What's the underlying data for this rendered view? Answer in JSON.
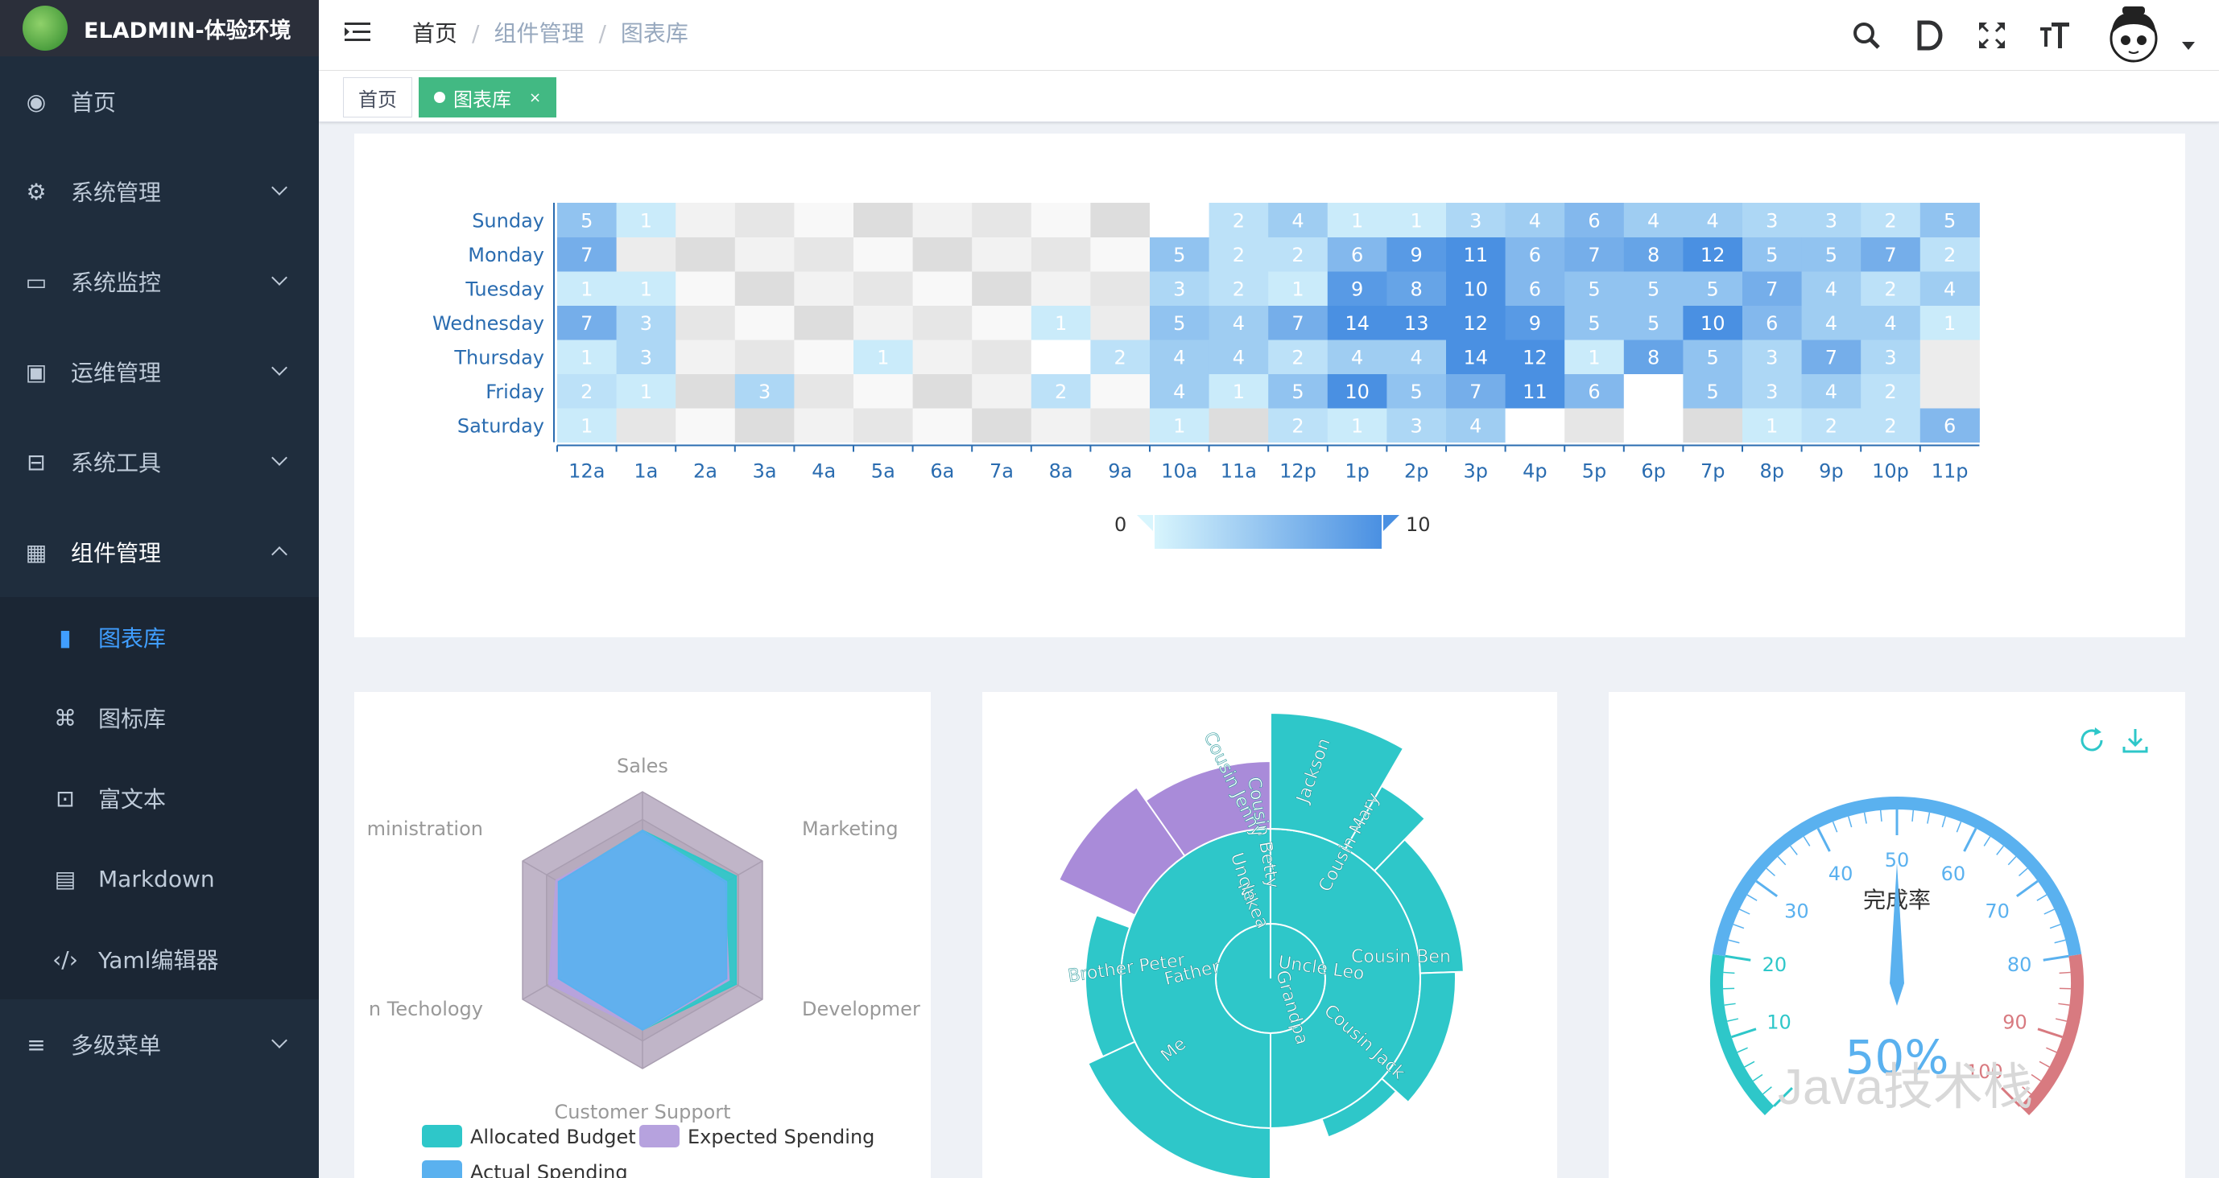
{
  "app": {
    "title": "ELADMIN-体验环境"
  },
  "sidebar": {
    "items": [
      {
        "label": "首页",
        "icon": "dashboard-icon"
      },
      {
        "label": "系统管理",
        "icon": "gear-icon"
      },
      {
        "label": "系统监控",
        "icon": "monitor-icon"
      },
      {
        "label": "运维管理",
        "icon": "ops-icon"
      },
      {
        "label": "系统工具",
        "icon": "toolbox-icon"
      },
      {
        "label": "组件管理",
        "icon": "grid-icon"
      }
    ],
    "submenu": [
      {
        "label": "图表库",
        "icon": "bar-chart-icon",
        "active": true
      },
      {
        "label": "图标库",
        "icon": "icon-library-icon"
      },
      {
        "label": "富文本",
        "icon": "rich-text-icon"
      },
      {
        "label": "Markdown",
        "icon": "markdown-icon"
      },
      {
        "label": "Yaml编辑器",
        "icon": "code-icon"
      }
    ],
    "last": {
      "label": "多级菜单",
      "icon": "list-icon"
    }
  },
  "breadcrumb": [
    "首页",
    "组件管理",
    "图表库"
  ],
  "tags": [
    {
      "label": "首页"
    },
    {
      "label": "图表库"
    }
  ],
  "tag_close": "×",
  "colors": {
    "sidebar_bg": "#1f2d3d",
    "active_menu": "#409eff",
    "active_tag": "#42b983",
    "teal": "#2ec7c9",
    "purple": "#b6a2de",
    "blue": "#5ab1ef"
  },
  "chart_data": [
    {
      "type": "heatmap",
      "x_categories": [
        "12a",
        "1a",
        "2a",
        "3a",
        "4a",
        "5a",
        "6a",
        "7a",
        "8a",
        "9a",
        "10a",
        "11a",
        "12p",
        "1p",
        "2p",
        "3p",
        "4p",
        "5p",
        "6p",
        "7p",
        "8p",
        "9p",
        "10p",
        "11p"
      ],
      "y_categories": [
        "Saturday",
        "Friday",
        "Thursday",
        "Wednesday",
        "Tuesday",
        "Monday",
        "Sunday"
      ],
      "values": [
        [
          1,
          0,
          0,
          0,
          0,
          0,
          0,
          0,
          0,
          0,
          1,
          0,
          2,
          1,
          3,
          4,
          null,
          0,
          null,
          0,
          1,
          2,
          2,
          6
        ],
        [
          2,
          1,
          0,
          3,
          0,
          0,
          0,
          0,
          2,
          0,
          4,
          1,
          5,
          10,
          5,
          7,
          11,
          6,
          null,
          5,
          3,
          4,
          2,
          null
        ],
        [
          1,
          3,
          0,
          0,
          0,
          1,
          0,
          0,
          null,
          2,
          4,
          4,
          2,
          4,
          4,
          14,
          12,
          1,
          8,
          5,
          3,
          7,
          3,
          null
        ],
        [
          7,
          3,
          0,
          0,
          0,
          0,
          0,
          0,
          1,
          null,
          5,
          4,
          7,
          14,
          13,
          12,
          9,
          5,
          5,
          10,
          6,
          4,
          4,
          1
        ],
        [
          1,
          1,
          0,
          0,
          0,
          0,
          0,
          0,
          0,
          0,
          3,
          2,
          1,
          9,
          8,
          10,
          6,
          5,
          5,
          5,
          7,
          4,
          2,
          4
        ],
        [
          7,
          null,
          0,
          0,
          0,
          0,
          0,
          0,
          0,
          0,
          5,
          2,
          2,
          6,
          9,
          11,
          6,
          7,
          8,
          12,
          5,
          5,
          7,
          2
        ],
        [
          5,
          1,
          0,
          0,
          0,
          0,
          0,
          0,
          0,
          0,
          null,
          2,
          4,
          1,
          1,
          3,
          4,
          6,
          4,
          4,
          3,
          3,
          2,
          5
        ]
      ],
      "visual_map": {
        "min": 0,
        "max": 10,
        "min_label": "0",
        "max_label": "10"
      }
    },
    {
      "type": "radar",
      "indicators": [
        "Sales",
        "Marketing",
        "Developmer",
        "Customer Support",
        "n Techology",
        "ministration"
      ],
      "series": [
        {
          "name": "Allocated Budget",
          "color": "#2ec7c9",
          "values": [
            0.72,
            0.78,
            0.78,
            0.72,
            0.66,
            0.7
          ]
        },
        {
          "name": "Expected Spending",
          "color": "#b6a2de",
          "values": [
            0.7,
            0.68,
            0.72,
            0.72,
            0.78,
            0.72
          ]
        },
        {
          "name": "Actual Spending",
          "color": "#5ab1ef",
          "values": [
            0.72,
            0.7,
            0.7,
            0.72,
            0.7,
            0.7
          ]
        }
      ]
    },
    {
      "type": "sunburst",
      "labels": [
        "Jackson",
        "Cousin Mary",
        "Cousin Ben",
        "Cousin Jack",
        "Uncle Leo",
        "Me",
        "Father",
        "Brother Peter",
        "Grandpa",
        "Nikea",
        "Uncle",
        "Cousin Betty",
        "Cousin Jenny"
      ]
    },
    {
      "type": "gauge",
      "title": "完成率",
      "value": 50,
      "value_label": "50%",
      "ticks": [
        "10",
        "20",
        "30",
        "40",
        "50",
        "60",
        "70",
        "80",
        "90",
        "100"
      ]
    }
  ],
  "toolbox": {
    "refresh": "refresh-icon",
    "download": "download-icon"
  },
  "watermark": "Java技术栈"
}
